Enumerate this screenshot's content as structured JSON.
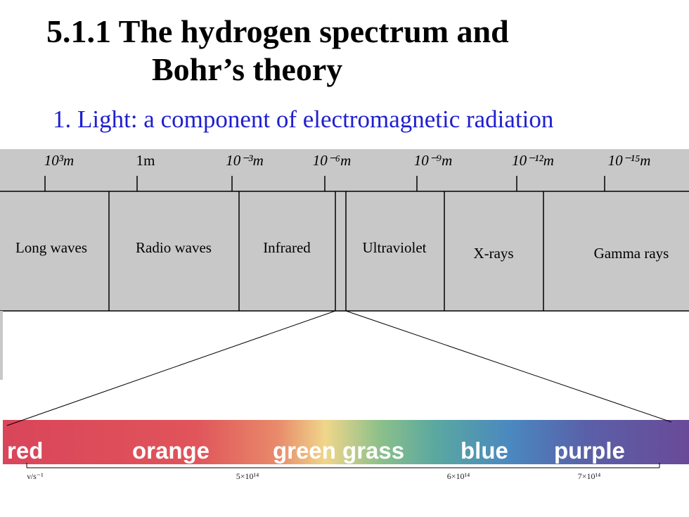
{
  "title": {
    "lines": [
      "5.1.1   The hydrogen spectrum and",
      "Bohr’s theory"
    ]
  },
  "subtitle": "1. Light: a component of electromagnetic radiation",
  "wavelengths": [
    "10³m",
    "1m",
    "10⁻³m",
    "10⁻⁶m",
    "10⁻⁹m",
    "10⁻¹²m",
    "10⁻¹⁵m"
  ],
  "regions": [
    "Long waves",
    "Radio waves",
    "Infrared",
    "Ultraviolet",
    "X-rays",
    "Gamma rays"
  ],
  "visible_colors": [
    "red",
    "orange",
    "green grass",
    "blue",
    "purple"
  ],
  "frequency_axis": {
    "unit": "ν/s⁻¹",
    "labels": [
      "5×10¹⁴",
      "6×10¹⁴",
      "7×10¹⁴"
    ]
  }
}
